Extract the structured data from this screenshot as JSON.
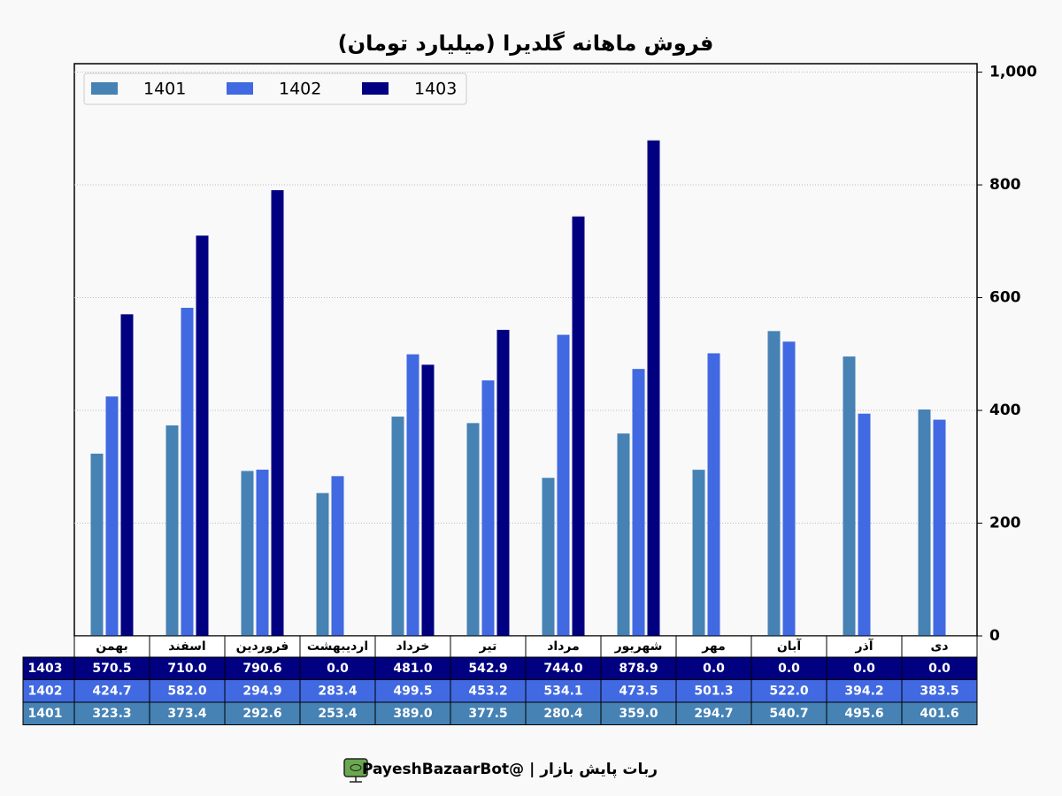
{
  "chart_data": {
    "type": "bar",
    "title": "فروش ماهانه گلدیرا (میلیارد تومان)",
    "categories": [
      "بهمن",
      "اسفند",
      "فروردین",
      "اردیبهشت",
      "خرداد",
      "تیر",
      "مرداد",
      "شهریور",
      "مهر",
      "آبان",
      "آذر",
      "دی"
    ],
    "series": [
      {
        "name": "1401",
        "color": "#4682b4",
        "values": [
          323.3,
          373.4,
          292.6,
          253.4,
          389.0,
          377.5,
          280.4,
          359.0,
          294.7,
          540.7,
          495.6,
          401.6
        ],
        "value_labels": [
          "323.3",
          "373.4",
          "292.6",
          "253.4",
          "389.0",
          "377.5",
          "280.4",
          "359.0",
          "294.7",
          "540.7",
          "495.6",
          "401.6"
        ]
      },
      {
        "name": "1402",
        "color": "#4169e1",
        "values": [
          424.7,
          582.0,
          294.9,
          283.4,
          499.5,
          453.2,
          534.1,
          473.5,
          501.3,
          522.0,
          394.2,
          383.5
        ],
        "value_labels": [
          "424.7",
          "582.0",
          "294.9",
          "283.4",
          "499.5",
          "453.2",
          "534.1",
          "473.5",
          "501.3",
          "522.0",
          "394.2",
          "383.5"
        ]
      },
      {
        "name": "1403",
        "color": "#000080",
        "values": [
          570.5,
          710.0,
          790.6,
          0.0,
          481.0,
          542.9,
          744.0,
          878.9,
          0.0,
          0.0,
          0.0,
          0.0
        ],
        "value_labels": [
          "570.5",
          "710.0",
          "790.6",
          "0.0",
          "481.0",
          "542.9",
          "744.0",
          "878.9",
          "0.0",
          "0.0",
          "0.0",
          "0.0"
        ]
      }
    ],
    "ylim": [
      0,
      1015
    ],
    "yticks": [
      0,
      200,
      400,
      600,
      800,
      {
        "value": 1000,
        "label": "1,000"
      }
    ],
    "y_axis_side": "right",
    "grid": true,
    "legend": "upper left",
    "footer": "ربات پایش بازار | @PayeshBazaarBot"
  }
}
